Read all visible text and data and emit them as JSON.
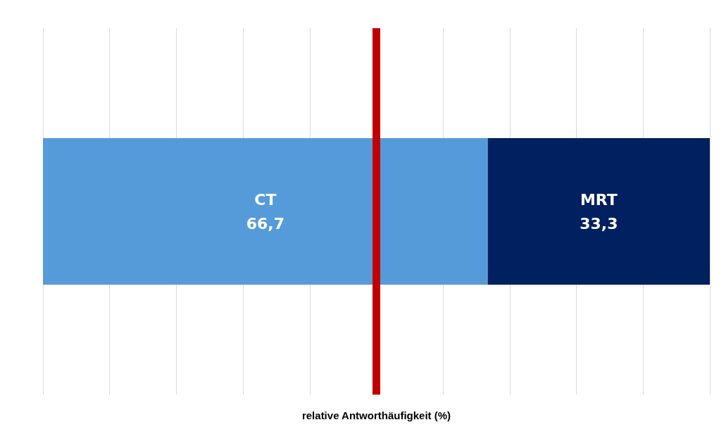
{
  "chart_data": {
    "type": "bar",
    "orientation": "horizontal",
    "stacked": true,
    "xlabel": "relative Antworthäufigkeit (%)",
    "categories": [
      null
    ],
    "series": [
      {
        "name": "CT",
        "color": "#569bd9",
        "values": [
          66.7
        ],
        "value_labels": [
          "66,7"
        ]
      },
      {
        "name": "MRT",
        "color": "#002060",
        "values": [
          33.3
        ],
        "value_labels": [
          "33,3"
        ]
      }
    ],
    "xlim": [
      0,
      100
    ],
    "xticks": [
      {
        "value": 0,
        "label": null
      },
      {
        "value": 10,
        "label": null
      },
      {
        "value": 20,
        "label": null
      },
      {
        "value": 30,
        "label": null
      },
      {
        "value": 40,
        "label": null
      },
      {
        "value": 50,
        "label": null
      },
      {
        "value": 60,
        "label": null
      },
      {
        "value": 70,
        "label": null
      },
      {
        "value": 80,
        "label": null
      },
      {
        "value": 90,
        "label": null
      },
      {
        "value": 100,
        "label": null
      }
    ],
    "ref_lines": [
      {
        "axis": "x",
        "value": 50,
        "color": "#c00000"
      }
    ],
    "grid": "x"
  }
}
